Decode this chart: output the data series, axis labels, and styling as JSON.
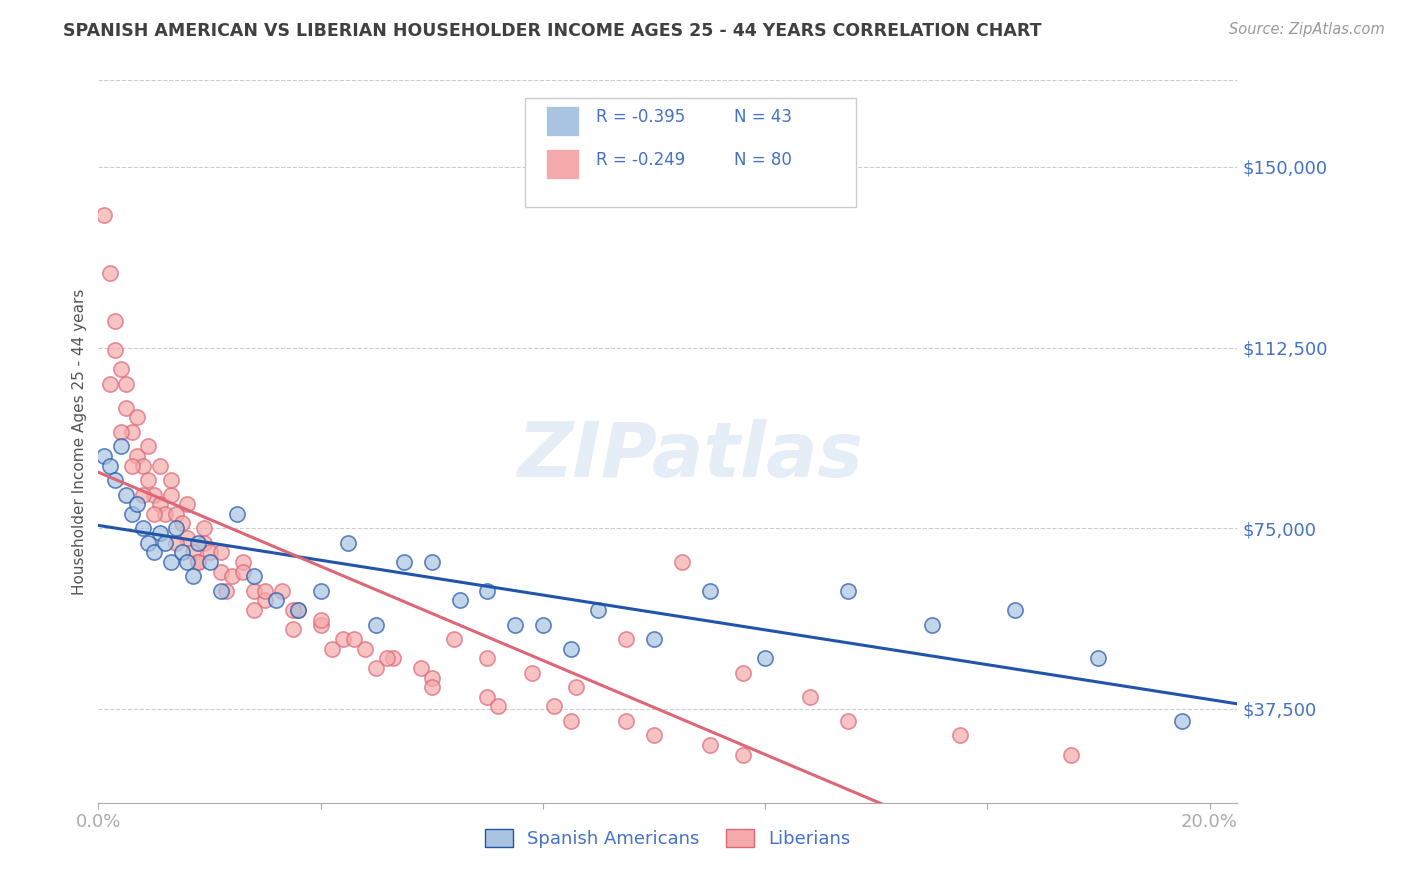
{
  "title": "SPANISH AMERICAN VS LIBERIAN HOUSEHOLDER INCOME AGES 25 - 44 YEARS CORRELATION CHART",
  "source": "Source: ZipAtlas.com",
  "ylabel": "Householder Income Ages 25 - 44 years",
  "xlim": [
    0.0,
    0.205
  ],
  "ylim": [
    18000,
    168000
  ],
  "yticks": [
    37500,
    75000,
    112500,
    150000
  ],
  "ytick_labels": [
    "$37,500",
    "$75,000",
    "$112,500",
    "$150,000"
  ],
  "xticks": [
    0.0,
    0.04,
    0.08,
    0.12,
    0.16,
    0.2
  ],
  "xtick_labels": [
    "0.0%",
    "",
    "",
    "",
    "",
    "20.0%"
  ],
  "blue_color": "#a8c4e0",
  "pink_color": "#f4aaaa",
  "trend_blue": "#2255aa",
  "trend_pink": "#dd6677",
  "axis_color": "#4472c4",
  "title_color": "#404040",
  "watermark": "ZIPatlas",
  "legend_r1": "R = -0.395",
  "legend_n1": "N = 43",
  "legend_r2": "R = -0.249",
  "legend_n2": "N = 80",
  "legend_label1": "Spanish Americans",
  "legend_label2": "Liberians",
  "spanish_x": [
    0.001,
    0.002,
    0.003,
    0.004,
    0.005,
    0.006,
    0.007,
    0.008,
    0.009,
    0.01,
    0.011,
    0.012,
    0.013,
    0.014,
    0.015,
    0.016,
    0.017,
    0.018,
    0.02,
    0.022,
    0.025,
    0.028,
    0.032,
    0.036,
    0.04,
    0.045,
    0.05,
    0.06,
    0.07,
    0.08,
    0.09,
    0.1,
    0.11,
    0.12,
    0.135,
    0.15,
    0.165,
    0.18,
    0.195,
    0.055,
    0.065,
    0.075,
    0.085
  ],
  "spanish_y": [
    90000,
    88000,
    85000,
    92000,
    82000,
    78000,
    80000,
    75000,
    72000,
    70000,
    74000,
    72000,
    68000,
    75000,
    70000,
    68000,
    65000,
    72000,
    68000,
    62000,
    78000,
    65000,
    60000,
    58000,
    62000,
    72000,
    55000,
    68000,
    62000,
    55000,
    58000,
    52000,
    62000,
    48000,
    62000,
    55000,
    58000,
    48000,
    35000,
    68000,
    60000,
    55000,
    50000
  ],
  "liberian_x": [
    0.001,
    0.002,
    0.003,
    0.004,
    0.005,
    0.006,
    0.007,
    0.008,
    0.009,
    0.01,
    0.011,
    0.012,
    0.013,
    0.014,
    0.015,
    0.016,
    0.017,
    0.018,
    0.019,
    0.02,
    0.022,
    0.024,
    0.026,
    0.028,
    0.03,
    0.033,
    0.036,
    0.04,
    0.044,
    0.048,
    0.053,
    0.058,
    0.064,
    0.07,
    0.078,
    0.086,
    0.095,
    0.105,
    0.116,
    0.128,
    0.003,
    0.005,
    0.007,
    0.009,
    0.011,
    0.013,
    0.016,
    0.019,
    0.022,
    0.026,
    0.03,
    0.035,
    0.04,
    0.046,
    0.052,
    0.06,
    0.07,
    0.082,
    0.095,
    0.11,
    0.002,
    0.004,
    0.006,
    0.008,
    0.01,
    0.014,
    0.018,
    0.023,
    0.028,
    0.035,
    0.042,
    0.05,
    0.06,
    0.072,
    0.085,
    0.1,
    0.116,
    0.135,
    0.155,
    0.175
  ],
  "liberian_y": [
    140000,
    128000,
    118000,
    108000,
    100000,
    95000,
    90000,
    88000,
    85000,
    82000,
    80000,
    78000,
    82000,
    78000,
    76000,
    73000,
    70000,
    68000,
    72000,
    70000,
    66000,
    65000,
    68000,
    62000,
    60000,
    62000,
    58000,
    55000,
    52000,
    50000,
    48000,
    46000,
    52000,
    48000,
    45000,
    42000,
    52000,
    68000,
    45000,
    40000,
    112000,
    105000,
    98000,
    92000,
    88000,
    85000,
    80000,
    75000,
    70000,
    66000,
    62000,
    58000,
    56000,
    52000,
    48000,
    44000,
    40000,
    38000,
    35000,
    30000,
    105000,
    95000,
    88000,
    82000,
    78000,
    72000,
    68000,
    62000,
    58000,
    54000,
    50000,
    46000,
    42000,
    38000,
    35000,
    32000,
    28000,
    35000,
    32000,
    28000
  ]
}
